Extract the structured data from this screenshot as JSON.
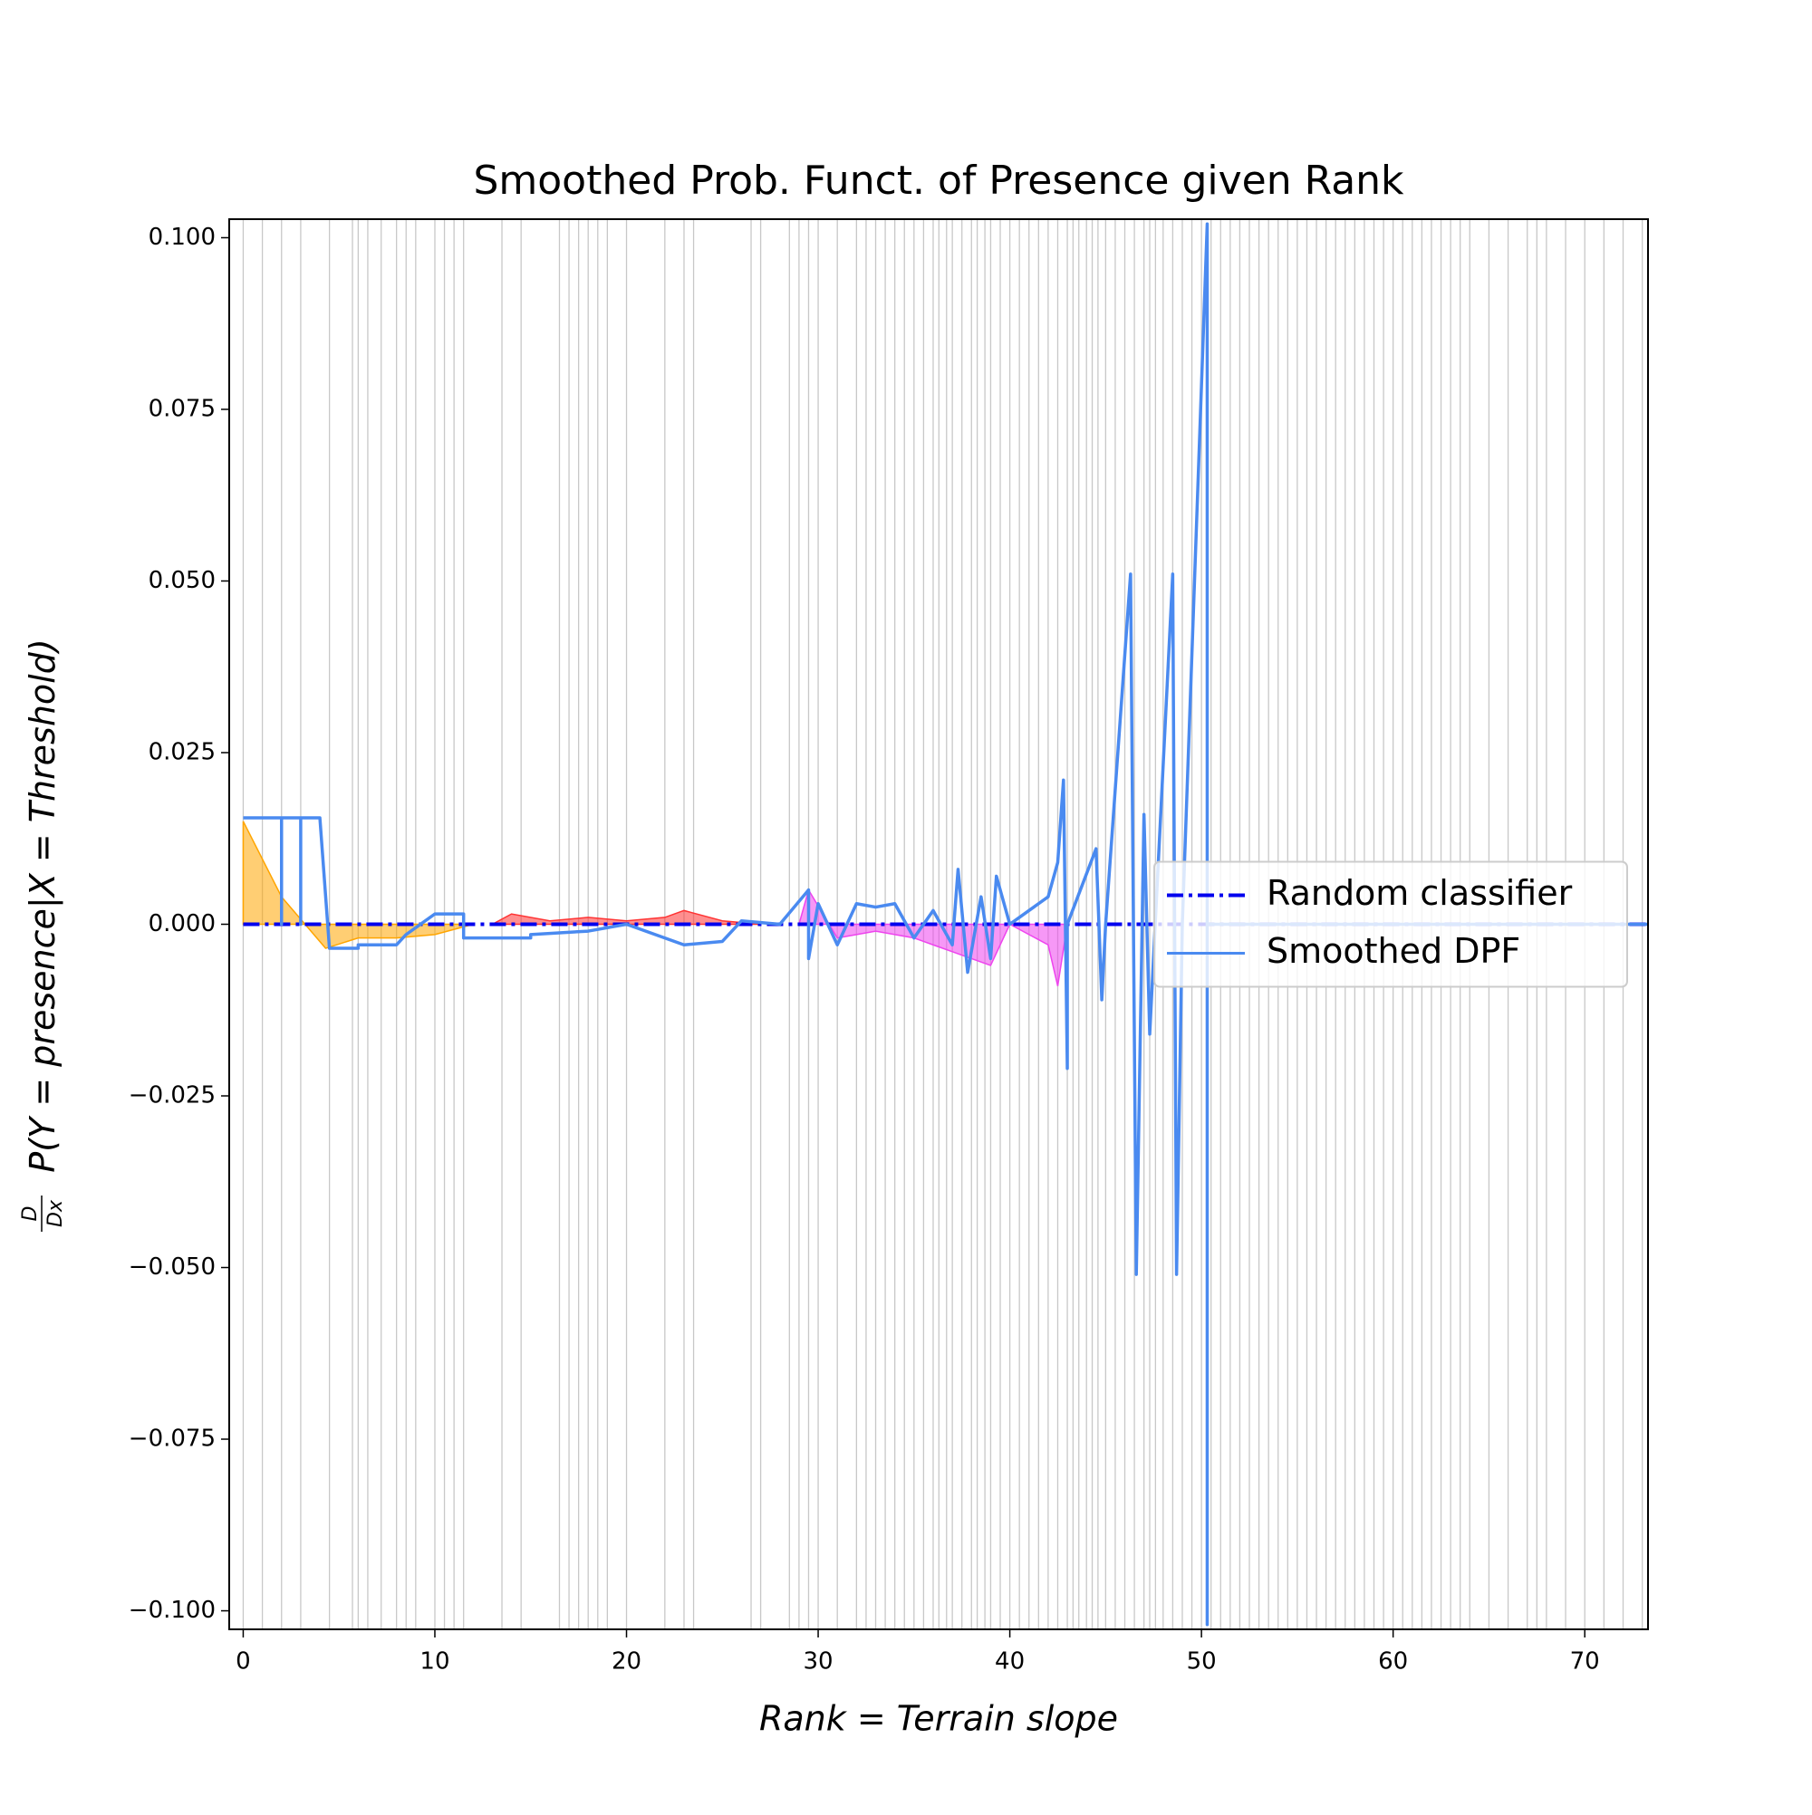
{
  "chart_data": {
    "type": "line",
    "title": "Smoothed Prob. Funct. of Presence given Rank",
    "x_label": "Rank = Terrain slope",
    "y_label_fraction": [
      "D",
      "Dx"
    ],
    "y_label": "P(Y = presence|X = Threshold)",
    "xlim": [
      -0.73,
      73.3
    ],
    "ylim": [
      -0.1027,
      0.1027
    ],
    "xticks": [
      0,
      10,
      20,
      30,
      40,
      50,
      60,
      70
    ],
    "yticks": [
      {
        "value": -0.1,
        "label": "−0.100"
      },
      {
        "value": -0.075,
        "label": "−0.075"
      },
      {
        "value": -0.05,
        "label": "−0.050"
      },
      {
        "value": -0.025,
        "label": "−0.025"
      },
      {
        "value": 0,
        "label": "0.000"
      },
      {
        "value": 0.025,
        "label": "0.025"
      },
      {
        "value": 0.05,
        "label": "0.050"
      },
      {
        "value": 0.075,
        "label": "0.075"
      },
      {
        "value": 0.1,
        "label": "0.100"
      }
    ],
    "legend": "center right",
    "rug_color": "#b0b0b0",
    "rug": [
      0,
      1,
      2,
      3,
      4.5,
      5.7,
      6,
      6.5,
      7.2,
      8,
      8.5,
      9,
      10,
      10.5,
      11,
      11.5,
      13.5,
      14.5,
      16.5,
      17,
      17.5,
      18,
      18.5,
      19,
      20,
      22,
      23,
      23.5,
      26.5,
      27,
      28.5,
      29,
      29.5,
      30,
      31,
      32,
      32.5,
      33,
      33.5,
      34,
      34.5,
      35,
      35.5,
      36,
      36.3,
      36.7,
      37,
      37.5,
      38,
      38.3,
      38.7,
      39,
      39.5,
      40,
      40.5,
      41,
      41.5,
      42,
      42.5,
      43,
      43.3,
      43.6,
      44,
      44.3,
      44.6,
      45,
      45.5,
      46,
      46.5,
      47,
      47.3,
      47.6,
      48,
      48.5,
      49,
      49.5,
      50,
      50.5,
      51,
      51.5,
      52,
      52.5,
      53,
      53.5,
      54,
      54.5,
      55,
      55.5,
      56,
      56.5,
      57,
      57.5,
      58,
      58.5,
      59,
      59.5,
      60,
      60.5,
      61,
      61.5,
      62,
      62.5,
      63,
      63.5,
      64,
      65,
      66,
      67,
      67.5,
      68,
      69,
      70,
      71,
      72,
      73
    ],
    "fills": [
      {
        "color": "#ffa500",
        "x": [
          0,
          2,
          4.3,
          6,
          8,
          10,
          12
        ],
        "values": [
          0.015,
          0.004,
          -0.0035,
          -0.002,
          -0.002,
          -0.0015,
          0
        ]
      },
      {
        "color": "#ff3333",
        "x": [
          13,
          14,
          16,
          18,
          20,
          22,
          23,
          25,
          27
        ],
        "values": [
          0,
          0.0015,
          0.0005,
          0.001,
          0.0005,
          0.001,
          0.002,
          0.0005,
          0
        ]
      },
      {
        "color": "#ee44ee",
        "x": [
          29,
          29.5,
          31,
          33,
          35,
          36,
          37,
          38,
          39,
          40,
          42,
          42.5,
          43
        ],
        "values": [
          0,
          0.005,
          -0.002,
          -0.001,
          -0.002,
          -0.003,
          -0.004,
          -0.005,
          -0.006,
          0,
          -0.003,
          -0.009,
          0
        ]
      }
    ],
    "series": [
      {
        "name": "Random classifier",
        "color": "#0000ee",
        "style": "dashdot",
        "x": [
          0,
          73.3
        ],
        "values": [
          0,
          0
        ]
      },
      {
        "name": "Smoothed DPF",
        "color": "#4a8af0",
        "style": "solid",
        "x": [
          0,
          2,
          2,
          2,
          3,
          3,
          3,
          4,
          4.5,
          6,
          6,
          8,
          8.5,
          10,
          11.5,
          11.5,
          15,
          15,
          18,
          20,
          23,
          25,
          26,
          28,
          29.5,
          29.5,
          30,
          31,
          32,
          33,
          34,
          35,
          36,
          37,
          37.3,
          37.8,
          38.5,
          39,
          39.3,
          40,
          42,
          42.5,
          42.8,
          43,
          43,
          44.5,
          44.8,
          45,
          46.3,
          46.6,
          47,
          47.3,
          48.5,
          48.7,
          49,
          50.3,
          50.3,
          50.3,
          73.3
        ],
        "values": [
          0.0155,
          0.0155,
          0,
          0.0155,
          0.0155,
          0,
          0.0155,
          0.0155,
          -0.0035,
          -0.0035,
          -0.003,
          -0.003,
          -0.0015,
          0.0015,
          0.0015,
          -0.002,
          -0.002,
          -0.0015,
          -0.001,
          0,
          -0.003,
          -0.0025,
          0.0005,
          0,
          0.005,
          -0.005,
          0.003,
          -0.003,
          0.003,
          0.0025,
          0.003,
          -0.002,
          0.002,
          -0.003,
          0.008,
          -0.007,
          0.004,
          -0.005,
          0.007,
          0,
          0.004,
          0.009,
          0.021,
          -0.021,
          0,
          0.011,
          -0.011,
          0,
          0.051,
          -0.051,
          0.016,
          -0.016,
          0.051,
          -0.051,
          0,
          0.102,
          -0.102,
          0,
          0
        ]
      }
    ]
  }
}
